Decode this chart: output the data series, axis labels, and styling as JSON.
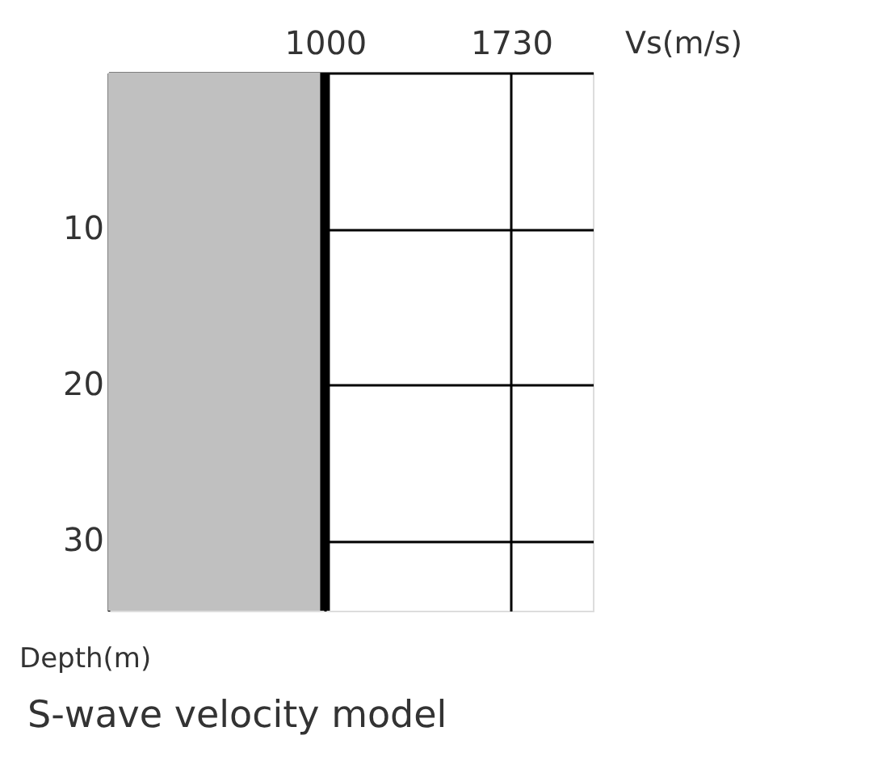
{
  "chart_data": {
    "type": "line",
    "title": "S-wave velocity model",
    "xlabel": "Vs(m/s)",
    "ylabel": "Depth(m)",
    "series": [
      {
        "x": [
          1000,
          1000
        ],
        "values": [
          0,
          34.5
        ],
        "color": "#000000"
      }
    ],
    "bands": [
      {
        "axis": "x",
        "from": 150,
        "to": 1000,
        "color": "#c0c0c0"
      }
    ],
    "xlim": [
      150,
      2050
    ],
    "xticks": [
      1000,
      1730
    ],
    "ylim": [
      34.5,
      0
    ],
    "yticks": [
      10,
      20,
      30
    ],
    "grid": true
  }
}
